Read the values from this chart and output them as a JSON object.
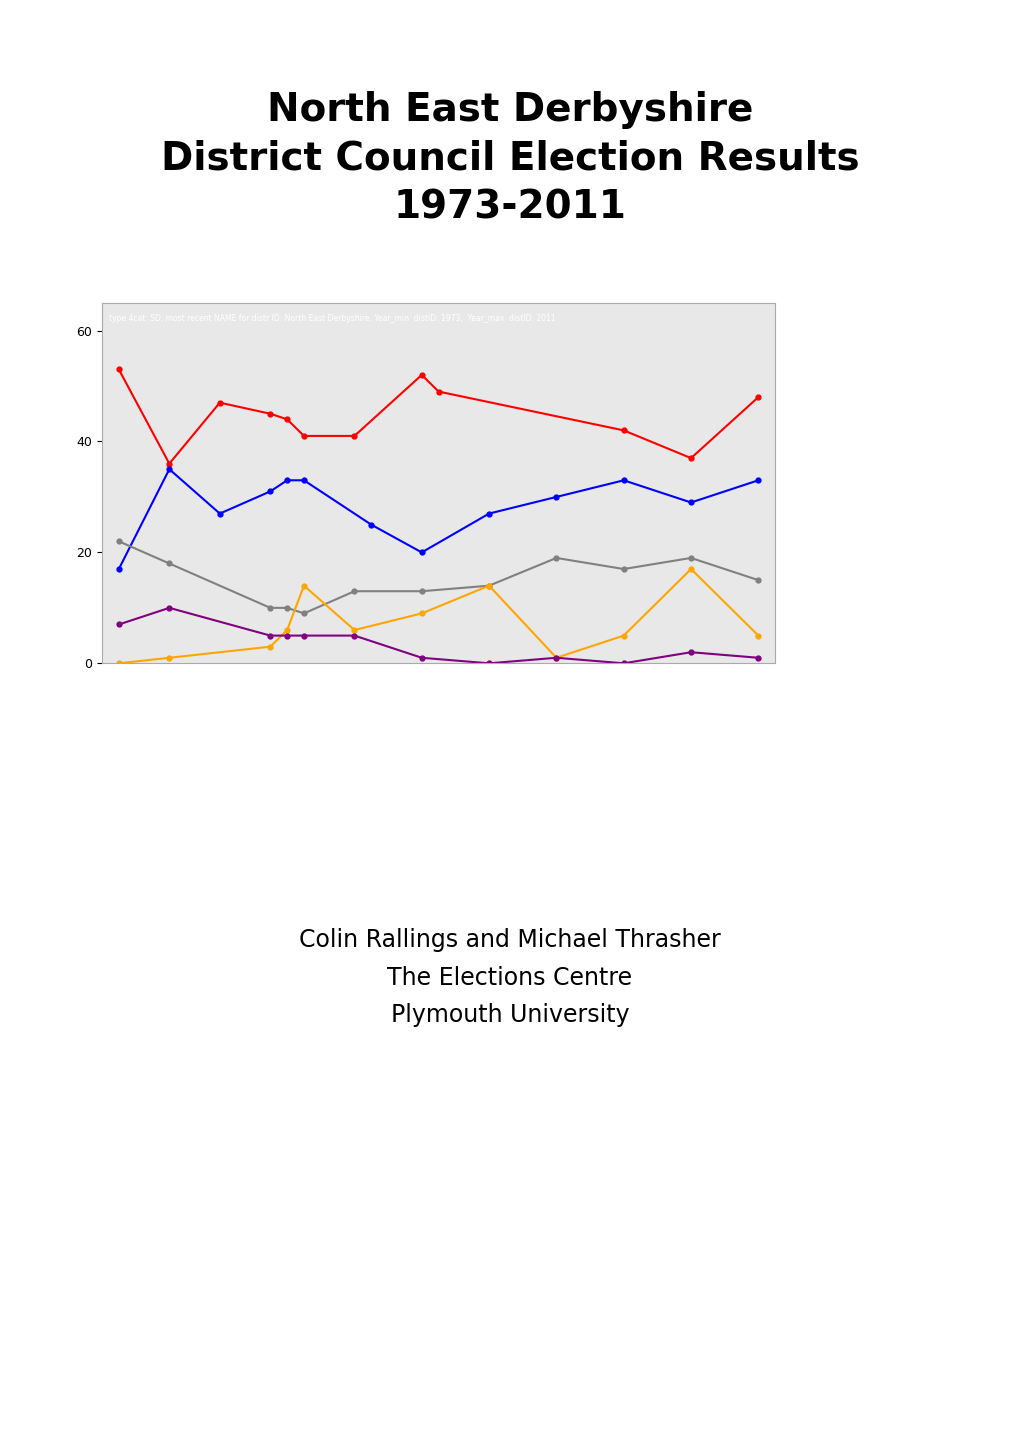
{
  "title": "North East Derbyshire\nDistrict Council Election Results\n1973-2011",
  "subtitle_text": "type 4cat: SD, most recent NAME for distr ID: North East Derbyshire, Year_min  distID: 1973;  Year_max  distID: 2011",
  "credit_line1": "Colin Rallings and Michael Thrasher",
  "credit_line2": "The Elections Centre",
  "credit_line3": "Plymouth University",
  "background_color": "#E8E8E8",
  "ylim": [
    0,
    65
  ],
  "yticks": [
    0,
    20,
    40,
    60
  ],
  "figsize": [
    10.2,
    14.42
  ],
  "dpi": 100,
  "lab_years": [
    1973,
    1976,
    1979,
    1982,
    1983,
    1984,
    1987,
    1991,
    1992,
    2003,
    2007,
    2011
  ],
  "lab_vals": [
    53,
    36,
    47,
    45,
    44,
    41,
    41,
    52,
    49,
    42,
    37,
    48
  ],
  "con_years": [
    1973,
    1976,
    1979,
    1982,
    1983,
    1984,
    1988,
    1991,
    1995,
    1999,
    2003,
    2007,
    2011
  ],
  "con_vals": [
    17,
    35,
    27,
    31,
    33,
    33,
    25,
    20,
    27,
    30,
    33,
    29,
    33
  ],
  "ld_years": [
    1973,
    1976,
    1982,
    1983,
    1984,
    1987,
    1991,
    1995,
    1999,
    2003,
    2007,
    2011
  ],
  "ld_vals": [
    22,
    18,
    10,
    10,
    9,
    13,
    13,
    14,
    19,
    17,
    19,
    15
  ],
  "other_years": [
    1973,
    1976,
    1982,
    1983,
    1984,
    1987,
    1991,
    1995,
    1999,
    2003,
    2007,
    2011
  ],
  "other_vals": [
    0,
    1,
    3,
    6,
    14,
    6,
    9,
    14,
    1,
    5,
    17,
    5
  ],
  "ukip_years": [
    1973,
    1976,
    1982,
    1983,
    1984,
    1987,
    1991,
    1995,
    1999,
    2003,
    2007,
    2011
  ],
  "ukip_vals": [
    7,
    10,
    5,
    5,
    5,
    5,
    1,
    0,
    1,
    0,
    2,
    1
  ]
}
